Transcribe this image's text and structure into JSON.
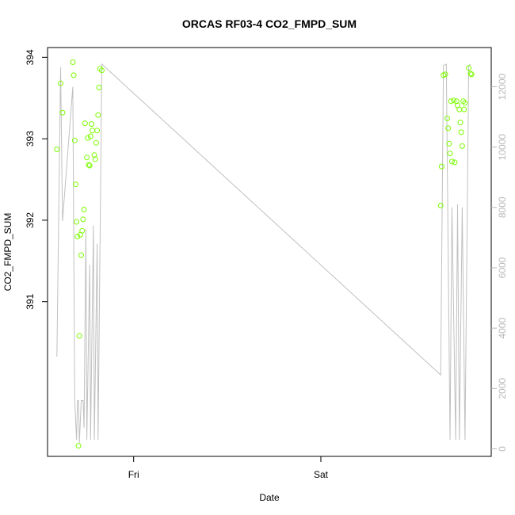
{
  "chart_data": {
    "type": "scatter",
    "title": "ORCAS RF03-4 CO2_FMPD_SUM",
    "xlabel": "Date",
    "ylabel": "CO2_FMPD_SUM",
    "x_unit": "days (Thu 00:00 = 0)",
    "x_ticks": [
      {
        "value": 1,
        "label": "Fri"
      },
      {
        "value": 2,
        "label": "Sat"
      }
    ],
    "xlim": [
      0.54,
      2.91
    ],
    "ylim": [
      389.1,
      394.12
    ],
    "y_ticks": [
      391,
      392,
      393,
      394
    ],
    "y2lim": [
      -250,
      13300
    ],
    "y2_ticks": [
      0,
      2000,
      4000,
      6000,
      8000,
      10000,
      12000
    ],
    "grid": false,
    "colors": {
      "points": "#7cfc00",
      "line": "#c0c0c0",
      "right_axis": "#b8b8b8"
    },
    "series": [
      {
        "kind": "points",
        "axis": "left",
        "points": [
          [
            0.59,
            392.87
          ],
          [
            0.61,
            393.68
          ],
          [
            0.62,
            393.32
          ],
          [
            0.675,
            393.94
          ],
          [
            0.68,
            393.78
          ],
          [
            0.685,
            392.98
          ],
          [
            0.69,
            392.44
          ],
          [
            0.695,
            391.98
          ],
          [
            0.7,
            391.8
          ],
          [
            0.705,
            389.23
          ],
          [
            0.71,
            390.58
          ],
          [
            0.715,
            391.82
          ],
          [
            0.72,
            391.57
          ],
          [
            0.725,
            391.87
          ],
          [
            0.73,
            392.01
          ],
          [
            0.735,
            392.13
          ],
          [
            0.74,
            393.19
          ],
          [
            0.75,
            392.77
          ],
          [
            0.755,
            393.01
          ],
          [
            0.76,
            392.68
          ],
          [
            0.765,
            392.67
          ],
          [
            0.77,
            393.03
          ],
          [
            0.775,
            393.18
          ],
          [
            0.78,
            393.1
          ],
          [
            0.79,
            392.8
          ],
          [
            0.795,
            392.75
          ],
          [
            0.8,
            392.95
          ],
          [
            0.805,
            393.1
          ],
          [
            0.81,
            393.29
          ],
          [
            0.815,
            393.63
          ],
          [
            0.82,
            393.86
          ],
          [
            0.83,
            393.84
          ],
          [
            2.64,
            392.18
          ],
          [
            2.645,
            392.66
          ],
          [
            2.655,
            393.78
          ],
          [
            2.665,
            393.79
          ],
          [
            2.675,
            393.25
          ],
          [
            2.68,
            393.13
          ],
          [
            2.685,
            392.94
          ],
          [
            2.69,
            392.82
          ],
          [
            2.695,
            393.46
          ],
          [
            2.7,
            392.72
          ],
          [
            2.71,
            393.47
          ],
          [
            2.715,
            392.71
          ],
          [
            2.725,
            393.46
          ],
          [
            2.73,
            393.41
          ],
          [
            2.74,
            393.36
          ],
          [
            2.745,
            393.2
          ],
          [
            2.75,
            393.08
          ],
          [
            2.755,
            392.91
          ],
          [
            2.76,
            393.46
          ],
          [
            2.765,
            393.36
          ],
          [
            2.77,
            393.44
          ],
          [
            2.79,
            393.87
          ],
          [
            2.8,
            393.8
          ],
          [
            2.805,
            393.79
          ]
        ]
      },
      {
        "kind": "line",
        "axis": "right",
        "points": [
          [
            0.59,
            3050
          ],
          [
            0.61,
            12650
          ],
          [
            0.62,
            7550
          ],
          [
            0.675,
            12000
          ],
          [
            0.685,
            1600
          ],
          [
            0.695,
            300
          ],
          [
            0.7,
            1600
          ],
          [
            0.705,
            1600
          ],
          [
            0.71,
            200
          ],
          [
            0.72,
            1600
          ],
          [
            0.73,
            1600
          ],
          [
            0.735,
            700
          ],
          [
            0.745,
            7300
          ],
          [
            0.75,
            300
          ],
          [
            0.765,
            6100
          ],
          [
            0.77,
            300
          ],
          [
            0.785,
            7400
          ],
          [
            0.79,
            300
          ],
          [
            0.805,
            6800
          ],
          [
            0.81,
            300
          ],
          [
            0.83,
            12750
          ],
          [
            2.64,
            2450
          ],
          [
            2.655,
            12700
          ],
          [
            2.67,
            12750
          ],
          [
            2.69,
            300
          ],
          [
            2.7,
            8000
          ],
          [
            2.72,
            300
          ],
          [
            2.73,
            8100
          ],
          [
            2.74,
            300
          ],
          [
            2.755,
            8000
          ],
          [
            2.77,
            300
          ],
          [
            2.79,
            12700
          ],
          [
            2.8,
            12750
          ]
        ]
      }
    ]
  }
}
